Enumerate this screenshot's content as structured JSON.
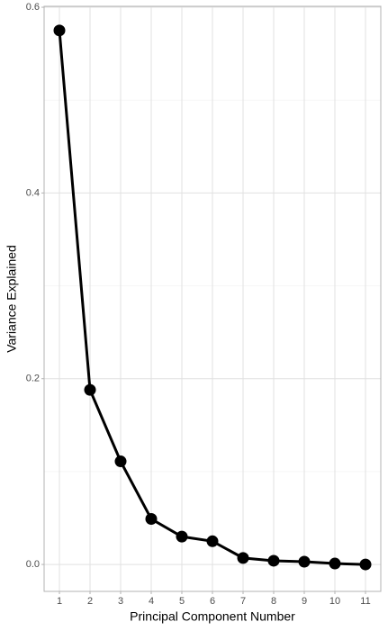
{
  "chart_data": {
    "type": "line",
    "x_label": "Principal Component Number",
    "y_label": "Variance Explained",
    "x": [
      1,
      2,
      3,
      4,
      5,
      6,
      7,
      8,
      9,
      10,
      11
    ],
    "values": [
      0.575,
      0.188,
      0.111,
      0.049,
      0.03,
      0.025,
      0.007,
      0.004,
      0.003,
      0.001,
      0.0
    ],
    "color": "#000000",
    "xlim": [
      0.5,
      11.5
    ],
    "xticks": [
      1,
      2,
      3,
      4,
      5,
      6,
      7,
      8,
      9,
      10,
      11
    ],
    "ylim": [
      -0.029,
      0.601
    ],
    "yticks": [
      {
        "value": 0,
        "label": "0.0"
      },
      0.2,
      0.4,
      {
        "value": 0.6,
        "label": "0.6"
      }
    ],
    "grid": true
  }
}
